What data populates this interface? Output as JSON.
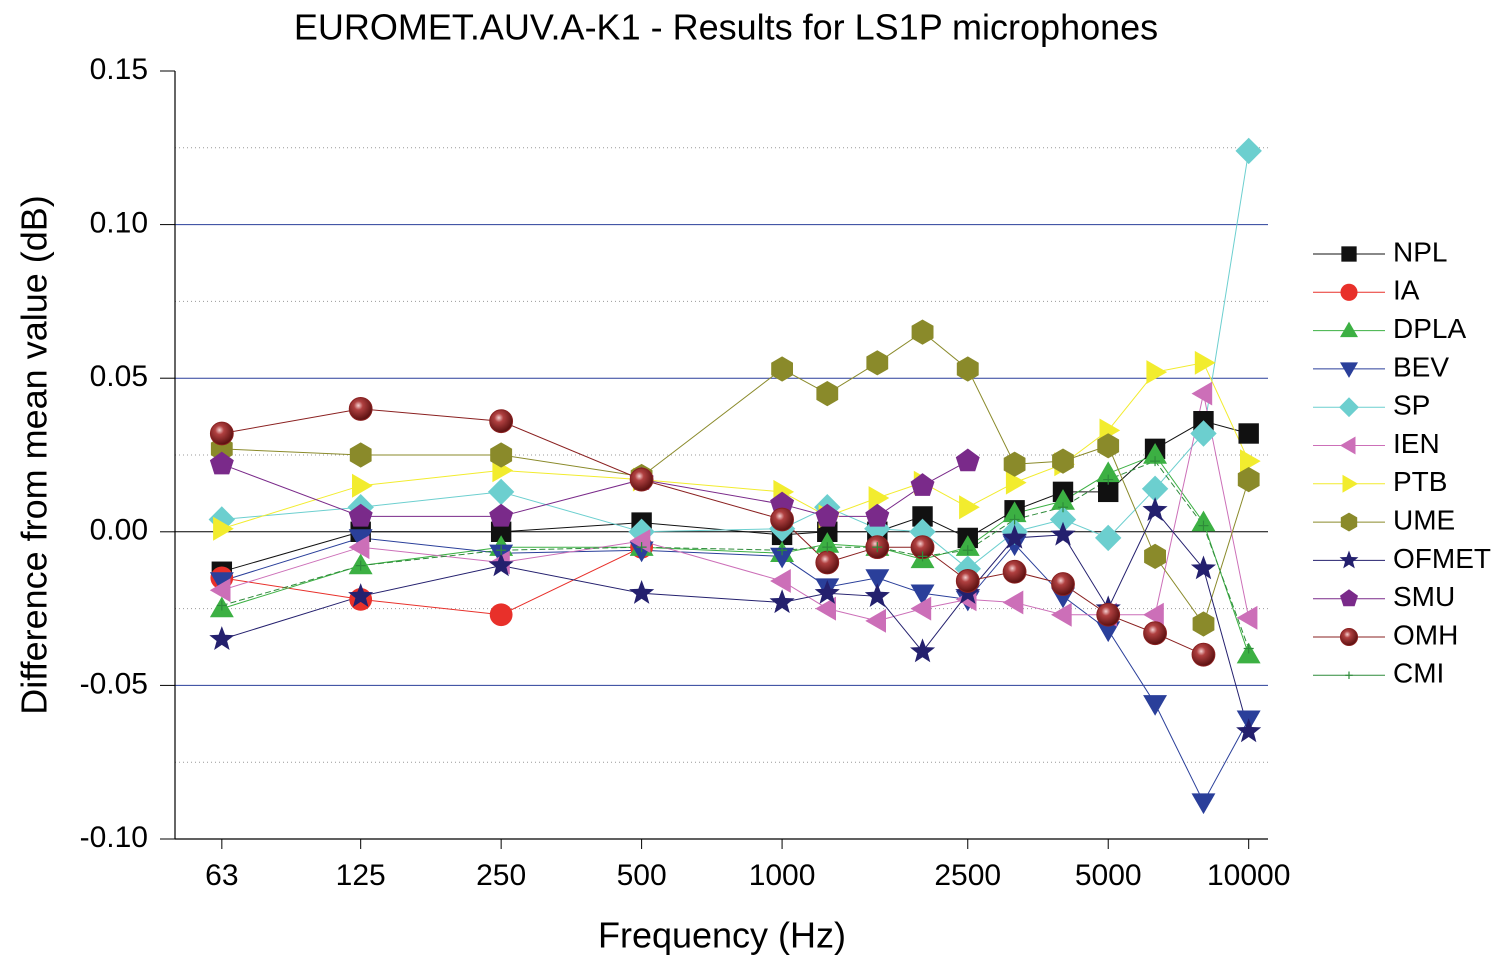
{
  "chart_data": {
    "type": "line",
    "title": "EUROMET.AUV.A-K1 - Results for LS1P microphones",
    "x_label": "Frequency (Hz)",
    "y_label": "Difference from mean value (dB)",
    "x_scale": "log",
    "x": [
      63,
      125,
      250,
      500,
      1000,
      1250,
      1600,
      2000,
      2500,
      3150,
      4000,
      5000,
      6300,
      8000,
      10000
    ],
    "xlim": [
      50,
      11000
    ],
    "xticks": [
      63,
      125,
      250,
      500,
      1000,
      2500,
      5000,
      10000
    ],
    "ylim": [
      -0.1,
      0.15
    ],
    "yticks": [
      {
        "value": -0.1,
        "label": "-0.10"
      },
      {
        "value": -0.05,
        "label": "-0.05"
      },
      {
        "value": 0,
        "label": "0.00"
      },
      {
        "value": 0.05,
        "label": "0.05"
      },
      {
        "value": 0.1,
        "label": "0.10"
      },
      {
        "value": 0.15,
        "label": "0.15"
      }
    ],
    "y_minor_ticks": [
      -0.075,
      -0.025,
      0.025,
      0.075,
      0.125
    ],
    "grid": true,
    "legend": "right",
    "series": [
      {
        "name": "NPL",
        "color": "#111111",
        "marker": "square",
        "values": [
          -0.013,
          0.0,
          0.0,
          0.003,
          -0.001,
          0.0,
          0.0,
          0.005,
          -0.002,
          0.007,
          0.013,
          0.013,
          0.027,
          0.036,
          0.032
        ]
      },
      {
        "name": "IA",
        "color": "#e8302a",
        "marker": "circle",
        "values": [
          -0.015,
          -0.022,
          -0.027,
          -0.005,
          null,
          null,
          null,
          null,
          null,
          null,
          null,
          null,
          null,
          null,
          null
        ]
      },
      {
        "name": "DPLA",
        "color": "#3cb043",
        "marker": "triangle-up",
        "values": [
          -0.025,
          -0.011,
          -0.005,
          -0.005,
          -0.007,
          -0.004,
          -0.005,
          -0.009,
          -0.005,
          0.006,
          0.01,
          0.019,
          0.025,
          0.003,
          -0.04
        ]
      },
      {
        "name": "BEV",
        "color": "#2a3f9a",
        "marker": "triangle-down",
        "values": [
          -0.016,
          -0.002,
          -0.007,
          -0.006,
          -0.008,
          -0.018,
          -0.015,
          -0.02,
          -0.022,
          -0.004,
          -0.021,
          -0.032,
          -0.056,
          -0.088,
          -0.061
        ]
      },
      {
        "name": "SP",
        "color": "#6ccfcf",
        "marker": "diamond",
        "values": [
          0.004,
          0.008,
          0.013,
          0.0,
          0.001,
          0.008,
          0.001,
          0.0,
          -0.012,
          0.0,
          0.004,
          -0.002,
          0.014,
          0.032,
          0.124
        ]
      },
      {
        "name": "IEN",
        "color": "#cc6fb8",
        "marker": "triangle-left",
        "values": [
          -0.019,
          -0.005,
          -0.01,
          -0.003,
          -0.016,
          -0.025,
          -0.029,
          -0.025,
          -0.022,
          -0.023,
          -0.027,
          -0.027,
          -0.027,
          0.045,
          -0.028
        ]
      },
      {
        "name": "PTB",
        "color": "#f2ec2e",
        "marker": "triangle-right",
        "values": [
          0.001,
          0.015,
          0.02,
          0.017,
          0.013,
          0.005,
          0.011,
          0.016,
          0.008,
          0.016,
          0.022,
          0.033,
          0.052,
          0.055,
          0.023
        ]
      },
      {
        "name": "UME",
        "color": "#8a8a2a",
        "marker": "hexagon",
        "values": [
          0.027,
          0.025,
          0.025,
          0.018,
          0.053,
          0.045,
          0.055,
          0.065,
          0.053,
          0.022,
          0.023,
          0.028,
          -0.008,
          -0.03,
          0.017
        ]
      },
      {
        "name": "OFMET",
        "color": "#24206e",
        "marker": "star",
        "values": [
          -0.035,
          -0.021,
          -0.011,
          -0.02,
          -0.023,
          -0.02,
          -0.021,
          -0.039,
          -0.02,
          -0.002,
          -0.001,
          -0.025,
          0.007,
          -0.012,
          -0.065
        ]
      },
      {
        "name": "SMU",
        "color": "#7a2a8a",
        "marker": "pentagon",
        "values": [
          0.022,
          0.005,
          0.005,
          0.017,
          0.009,
          0.005,
          0.005,
          0.015,
          0.023,
          null,
          null,
          null,
          null,
          null,
          null
        ]
      },
      {
        "name": "OMH",
        "color": "#8a2020",
        "marker": "sphere",
        "values": [
          0.032,
          0.04,
          0.036,
          0.017,
          0.004,
          -0.01,
          -0.005,
          -0.005,
          -0.016,
          -0.013,
          -0.017,
          -0.027,
          -0.033,
          -0.04,
          null
        ]
      },
      {
        "name": "CMI",
        "color": "#2e8b3a",
        "marker": "plus",
        "values": [
          -0.024,
          -0.011,
          -0.006,
          -0.005,
          -0.006,
          -0.005,
          -0.005,
          -0.008,
          -0.006,
          0.004,
          0.008,
          0.017,
          0.023,
          0.002,
          -0.038
        ]
      }
    ]
  }
}
